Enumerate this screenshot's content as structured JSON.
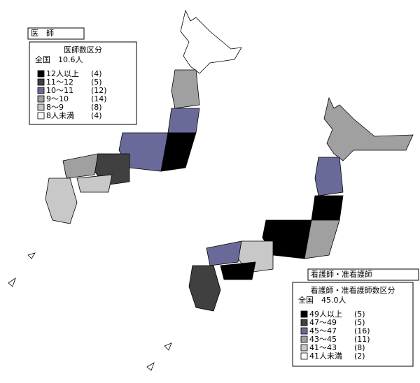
{
  "panels": [
    {
      "title": "医　師",
      "legend_title": "医師数区分",
      "national": "全国　10.6人",
      "entries": [
        {
          "label": "12人以上",
          "count": "(4)",
          "color": "#000000"
        },
        {
          "label": "11～12",
          "count": "(5)",
          "color": "#404040"
        },
        {
          "label": "10～11",
          "count": "(12)",
          "color": "#6a6a9a"
        },
        {
          "label": "9～10",
          "count": "(14)",
          "color": "#a0a0a0"
        },
        {
          "label": "8～9",
          "count": "(8)",
          "color": "#c8c8c8"
        },
        {
          "label": "8人未満",
          "count": "(4)",
          "color": "#ffffff"
        }
      ]
    },
    {
      "title": "看護師・准看護師",
      "legend_title": "看護師・准看護師数区分",
      "national": "全国　45.0人",
      "entries": [
        {
          "label": "49人以上",
          "count": "(5)",
          "color": "#000000"
        },
        {
          "label": "47～49",
          "count": "(5)",
          "color": "#404040"
        },
        {
          "label": "45～47",
          "count": "(16)",
          "color": "#6a6a9a"
        },
        {
          "label": "43～45",
          "count": "(11)",
          "color": "#a0a0a0"
        },
        {
          "label": "41～43",
          "count": "(8)",
          "color": "#c8c8c8"
        },
        {
          "label": "41人未満",
          "count": "(2)",
          "color": "#ffffff"
        }
      ]
    }
  ]
}
